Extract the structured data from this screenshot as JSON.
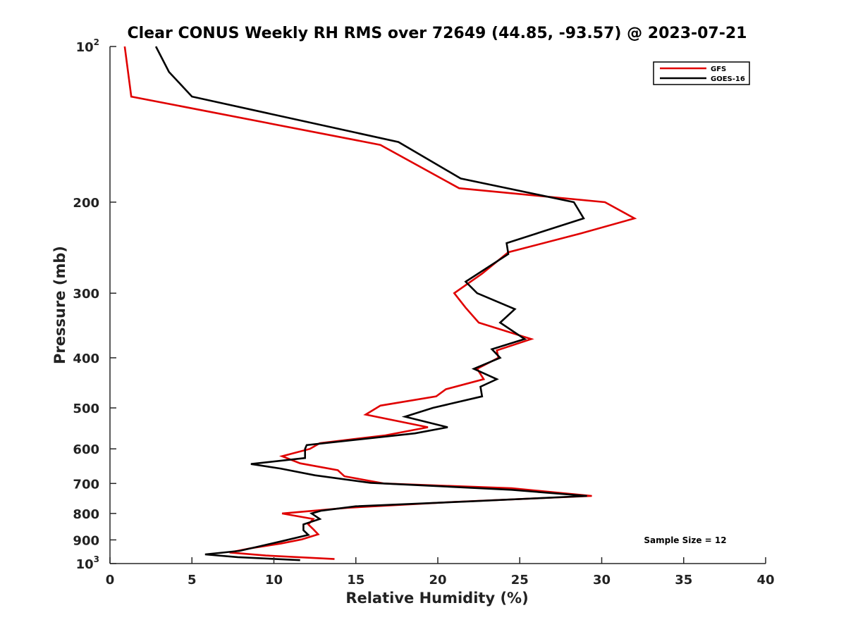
{
  "chart_data": {
    "type": "line",
    "title": "Clear CONUS Weekly RH RMS over 72649 (44.85, -93.57) @ 2023-07-21",
    "xlabel": "Relative Humidity (%)",
    "ylabel": "Pressure (mb)",
    "xlim": [
      0,
      40
    ],
    "ylim": [
      100,
      1000
    ],
    "yscale": "log",
    "y_reversed": true,
    "x_ticks": [
      "0",
      "5",
      "10",
      "15",
      "20",
      "25",
      "30",
      "35",
      "40"
    ],
    "y_ticks": [
      {
        "value": 100,
        "base": "10",
        "exp": "2"
      },
      {
        "value": 200,
        "base": "200",
        "exp": ""
      },
      {
        "value": 300,
        "base": "300",
        "exp": ""
      },
      {
        "value": 400,
        "base": "400",
        "exp": ""
      },
      {
        "value": 500,
        "base": "500",
        "exp": ""
      },
      {
        "value": 600,
        "base": "600",
        "exp": ""
      },
      {
        "value": 700,
        "base": "700",
        "exp": ""
      },
      {
        "value": 800,
        "base": "800",
        "exp": ""
      },
      {
        "value": 900,
        "base": "900",
        "exp": ""
      },
      {
        "value": 1000,
        "base": "10",
        "exp": "3"
      }
    ],
    "legend": {
      "position": "top-right",
      "entries": [
        {
          "name": "GFS",
          "color": "#e00000"
        },
        {
          "name": "GOES-16",
          "color": "#000000"
        }
      ]
    },
    "annotation": "Sample Size = 12",
    "series": [
      {
        "name": "GFS",
        "color": "#e00000",
        "points": [
          [
            0.9,
            100
          ],
          [
            1.3,
            125
          ],
          [
            16.5,
            155
          ],
          [
            21.3,
            188
          ],
          [
            30.2,
            200
          ],
          [
            32.0,
            215
          ],
          [
            28.7,
            230
          ],
          [
            24.3,
            250
          ],
          [
            22.7,
            275
          ],
          [
            21.0,
            300
          ],
          [
            21.7,
            320
          ],
          [
            22.5,
            342
          ],
          [
            25.7,
            368
          ],
          [
            23.6,
            387
          ],
          [
            23.7,
            400
          ],
          [
            22.4,
            420
          ],
          [
            22.8,
            440
          ],
          [
            20.5,
            460
          ],
          [
            19.9,
            475
          ],
          [
            16.5,
            495
          ],
          [
            15.6,
            515
          ],
          [
            19.4,
            545
          ],
          [
            16.8,
            565
          ],
          [
            12.8,
            585
          ],
          [
            12.2,
            600
          ],
          [
            10.5,
            620
          ],
          [
            11.6,
            640
          ],
          [
            13.9,
            660
          ],
          [
            14.3,
            678
          ],
          [
            16.7,
            700
          ],
          [
            24.5,
            715
          ],
          [
            29.4,
            740
          ],
          [
            21.0,
            760
          ],
          [
            14.5,
            780
          ],
          [
            10.5,
            800
          ],
          [
            12.4,
            820
          ],
          [
            12.1,
            840
          ],
          [
            12.4,
            858
          ],
          [
            12.7,
            878
          ],
          [
            11.7,
            898
          ],
          [
            10.4,
            915
          ],
          [
            8.5,
            935
          ],
          [
            7.3,
            952
          ],
          [
            9.5,
            965
          ],
          [
            13.7,
            980
          ]
        ]
      },
      {
        "name": "GOES-16",
        "color": "#000000",
        "points": [
          [
            2.8,
            100
          ],
          [
            3.6,
            112
          ],
          [
            5.0,
            125
          ],
          [
            17.6,
            153
          ],
          [
            21.4,
            180
          ],
          [
            28.3,
            200
          ],
          [
            28.9,
            215
          ],
          [
            24.2,
            240
          ],
          [
            24.3,
            252
          ],
          [
            21.7,
            285
          ],
          [
            22.4,
            300
          ],
          [
            24.7,
            322
          ],
          [
            23.8,
            342
          ],
          [
            25.3,
            368
          ],
          [
            23.3,
            385
          ],
          [
            23.8,
            400
          ],
          [
            22.2,
            420
          ],
          [
            23.6,
            440
          ],
          [
            22.6,
            455
          ],
          [
            22.7,
            475
          ],
          [
            19.7,
            500
          ],
          [
            18.0,
            520
          ],
          [
            20.6,
            545
          ],
          [
            18.6,
            560
          ],
          [
            12.0,
            590
          ],
          [
            11.9,
            600
          ],
          [
            11.9,
            625
          ],
          [
            8.6,
            642
          ],
          [
            10.4,
            655
          ],
          [
            12.5,
            675
          ],
          [
            15.9,
            698
          ],
          [
            24.5,
            720
          ],
          [
            29.1,
            740
          ],
          [
            22.0,
            758
          ],
          [
            15.0,
            775
          ],
          [
            12.9,
            790
          ],
          [
            12.3,
            800
          ],
          [
            12.8,
            820
          ],
          [
            11.8,
            840
          ],
          [
            11.8,
            862
          ],
          [
            12.1,
            880
          ],
          [
            10.5,
            905
          ],
          [
            9.2,
            925
          ],
          [
            7.9,
            945
          ],
          [
            5.8,
            960
          ],
          [
            7.8,
            972
          ],
          [
            11.6,
            985
          ]
        ]
      }
    ]
  }
}
